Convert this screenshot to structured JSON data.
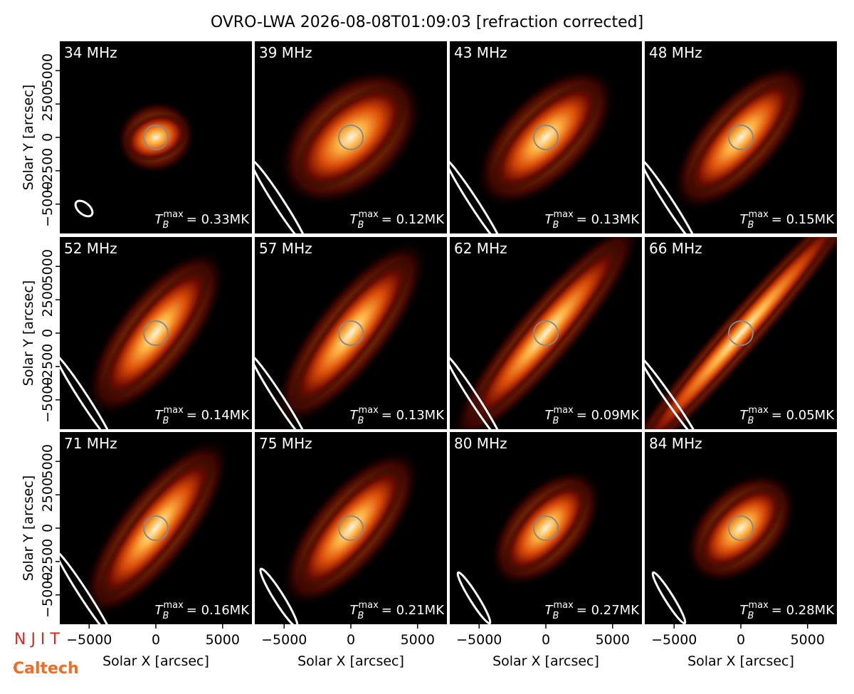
{
  "title": "OVRO-LWA 2026-08-08T01:09:03 [refraction corrected]",
  "axes": {
    "xlabel": "Solar X [arcsec]",
    "ylabel": "Solar Y [arcsec]",
    "xlim": [
      -7200,
      7200
    ],
    "ylim": [
      -7200,
      7200
    ],
    "xticks": [
      {
        "value": -5000,
        "label": "−5000"
      },
      0,
      5000
    ],
    "yticks": [
      {
        "value": -5000,
        "label": "−5000"
      },
      {
        "value": -2500,
        "label": "−2500"
      },
      0,
      2500,
      5000
    ]
  },
  "chart_data": [
    {
      "type": "image",
      "title": "34 MHz",
      "annotation": {
        "symbol": "T",
        "subscript": "B",
        "superscript": "max",
        "text": "= 0.33MK"
      }
    },
    {
      "type": "image",
      "title": "39 MHz",
      "annotation": {
        "symbol": "T",
        "subscript": "B",
        "superscript": "max",
        "text": "= 0.12MK"
      }
    },
    {
      "type": "image",
      "title": "43 MHz",
      "annotation": {
        "symbol": "T",
        "subscript": "B",
        "superscript": "max",
        "text": "= 0.13MK"
      }
    },
    {
      "type": "image",
      "title": "48 MHz",
      "annotation": {
        "symbol": "T",
        "subscript": "B",
        "superscript": "max",
        "text": "= 0.15MK"
      }
    },
    {
      "type": "image",
      "title": "52 MHz",
      "annotation": {
        "symbol": "T",
        "subscript": "B",
        "superscript": "max",
        "text": "= 0.14MK"
      }
    },
    {
      "type": "image",
      "title": "57 MHz",
      "annotation": {
        "symbol": "T",
        "subscript": "B",
        "superscript": "max",
        "text": "= 0.13MK"
      }
    },
    {
      "type": "image",
      "title": "62 MHz",
      "annotation": {
        "symbol": "T",
        "subscript": "B",
        "superscript": "max",
        "text": "= 0.09MK"
      }
    },
    {
      "type": "image",
      "title": "66 MHz",
      "annotation": {
        "symbol": "T",
        "subscript": "B",
        "superscript": "max",
        "text": "= 0.05MK"
      }
    },
    {
      "type": "image",
      "title": "71 MHz",
      "annotation": {
        "symbol": "T",
        "subscript": "B",
        "superscript": "max",
        "text": "= 0.16MK"
      }
    },
    {
      "type": "image",
      "title": "75 MHz",
      "annotation": {
        "symbol": "T",
        "subscript": "B",
        "superscript": "max",
        "text": "= 0.21MK"
      }
    },
    {
      "type": "image",
      "title": "80 MHz",
      "annotation": {
        "symbol": "T",
        "subscript": "B",
        "superscript": "max",
        "text": "= 0.27MK"
      }
    },
    {
      "type": "image",
      "title": "84 MHz",
      "annotation": {
        "symbol": "T",
        "subscript": "B",
        "superscript": "max",
        "text": "= 0.28MK"
      }
    }
  ],
  "logos": [
    "N J I T",
    "Caltech"
  ]
}
